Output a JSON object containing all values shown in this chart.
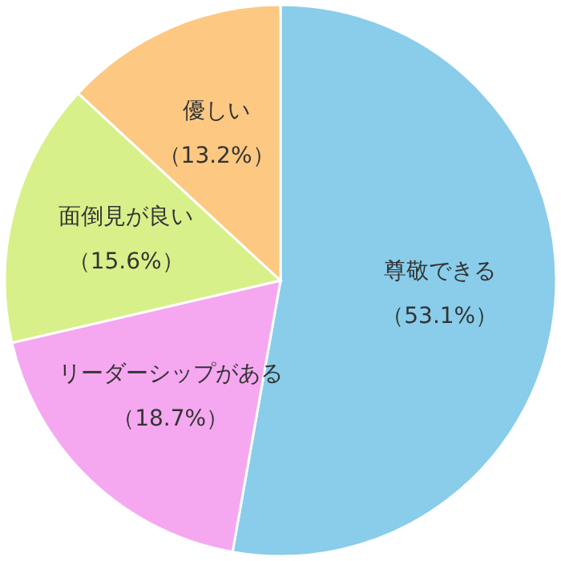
{
  "chart_data": {
    "type": "pie",
    "categories": [
      "尊敬できる",
      "リーダーシップがある",
      "面倒見が良い",
      "優しい"
    ],
    "values": [
      53.1,
      18.7,
      15.6,
      13.2
    ],
    "value_labels": [
      "（53.1%）",
      "（18.7%）",
      "（15.6%）",
      "（13.2%）"
    ],
    "colors": [
      "#89cdea",
      "#f5a8f0",
      "#d8f08a",
      "#fdc882"
    ]
  }
}
